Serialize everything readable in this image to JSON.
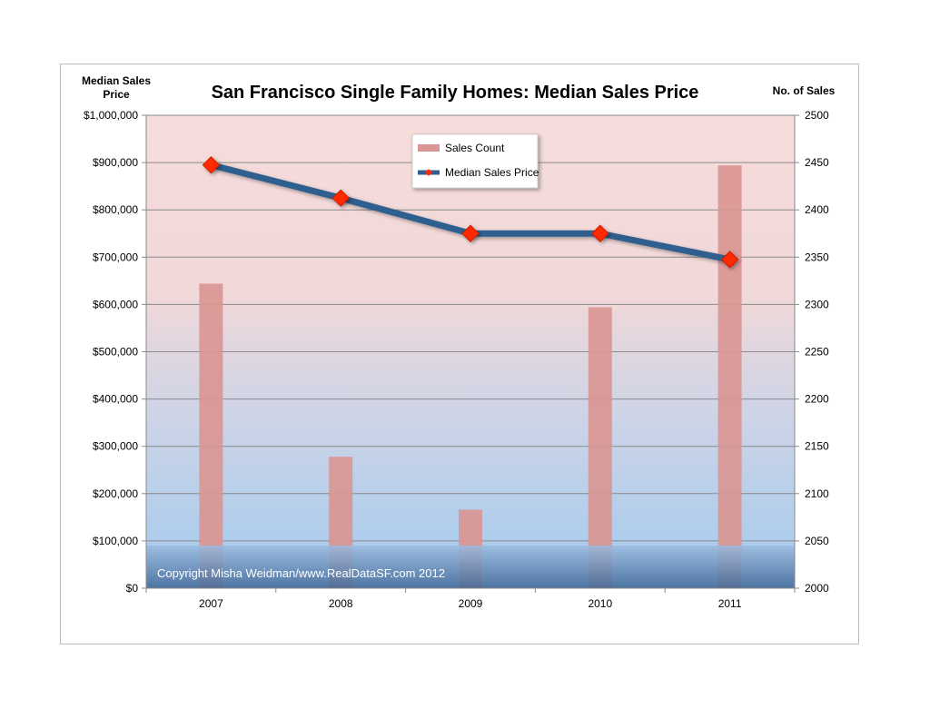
{
  "chart_data": {
    "type": "bar",
    "title": "San Francisco Single Family Homes:  Median Sales Price",
    "y_left_label": "Median Sales Price",
    "y_right_label": "No. of Sales",
    "copyright": "Copyright Misha Weidman/www.RealDataSF.com  2012",
    "categories": [
      "2007",
      "2008",
      "2009",
      "2010",
      "2011"
    ],
    "y_left": {
      "min": 0,
      "max": 1000000,
      "ticks": [
        "$0",
        "$100,000",
        "$200,000",
        "$300,000",
        "$400,000",
        "$500,000",
        "$600,000",
        "$700,000",
        "$800,000",
        "$900,000",
        "$1,000,000"
      ]
    },
    "y_right": {
      "min": 2000,
      "max": 2500,
      "ticks": [
        "2000",
        "2050",
        "2100",
        "2150",
        "2200",
        "2250",
        "2300",
        "2350",
        "2400",
        "2450",
        "2500"
      ]
    },
    "series": [
      {
        "name": "Sales Count",
        "type": "bar",
        "axis": "right",
        "color": "#d99694",
        "values": [
          2322,
          2139,
          2083,
          2297,
          2447
        ]
      },
      {
        "name": "Median Sales Price",
        "type": "line",
        "axis": "left",
        "color": "#2e5f8f",
        "marker_color": "#ff2a00",
        "values": [
          895000,
          825000,
          750000,
          750000,
          695000
        ]
      }
    ],
    "grid": true,
    "legend_position": "top-center",
    "background_gradient": [
      "#f6dcda",
      "#aecdec"
    ]
  }
}
